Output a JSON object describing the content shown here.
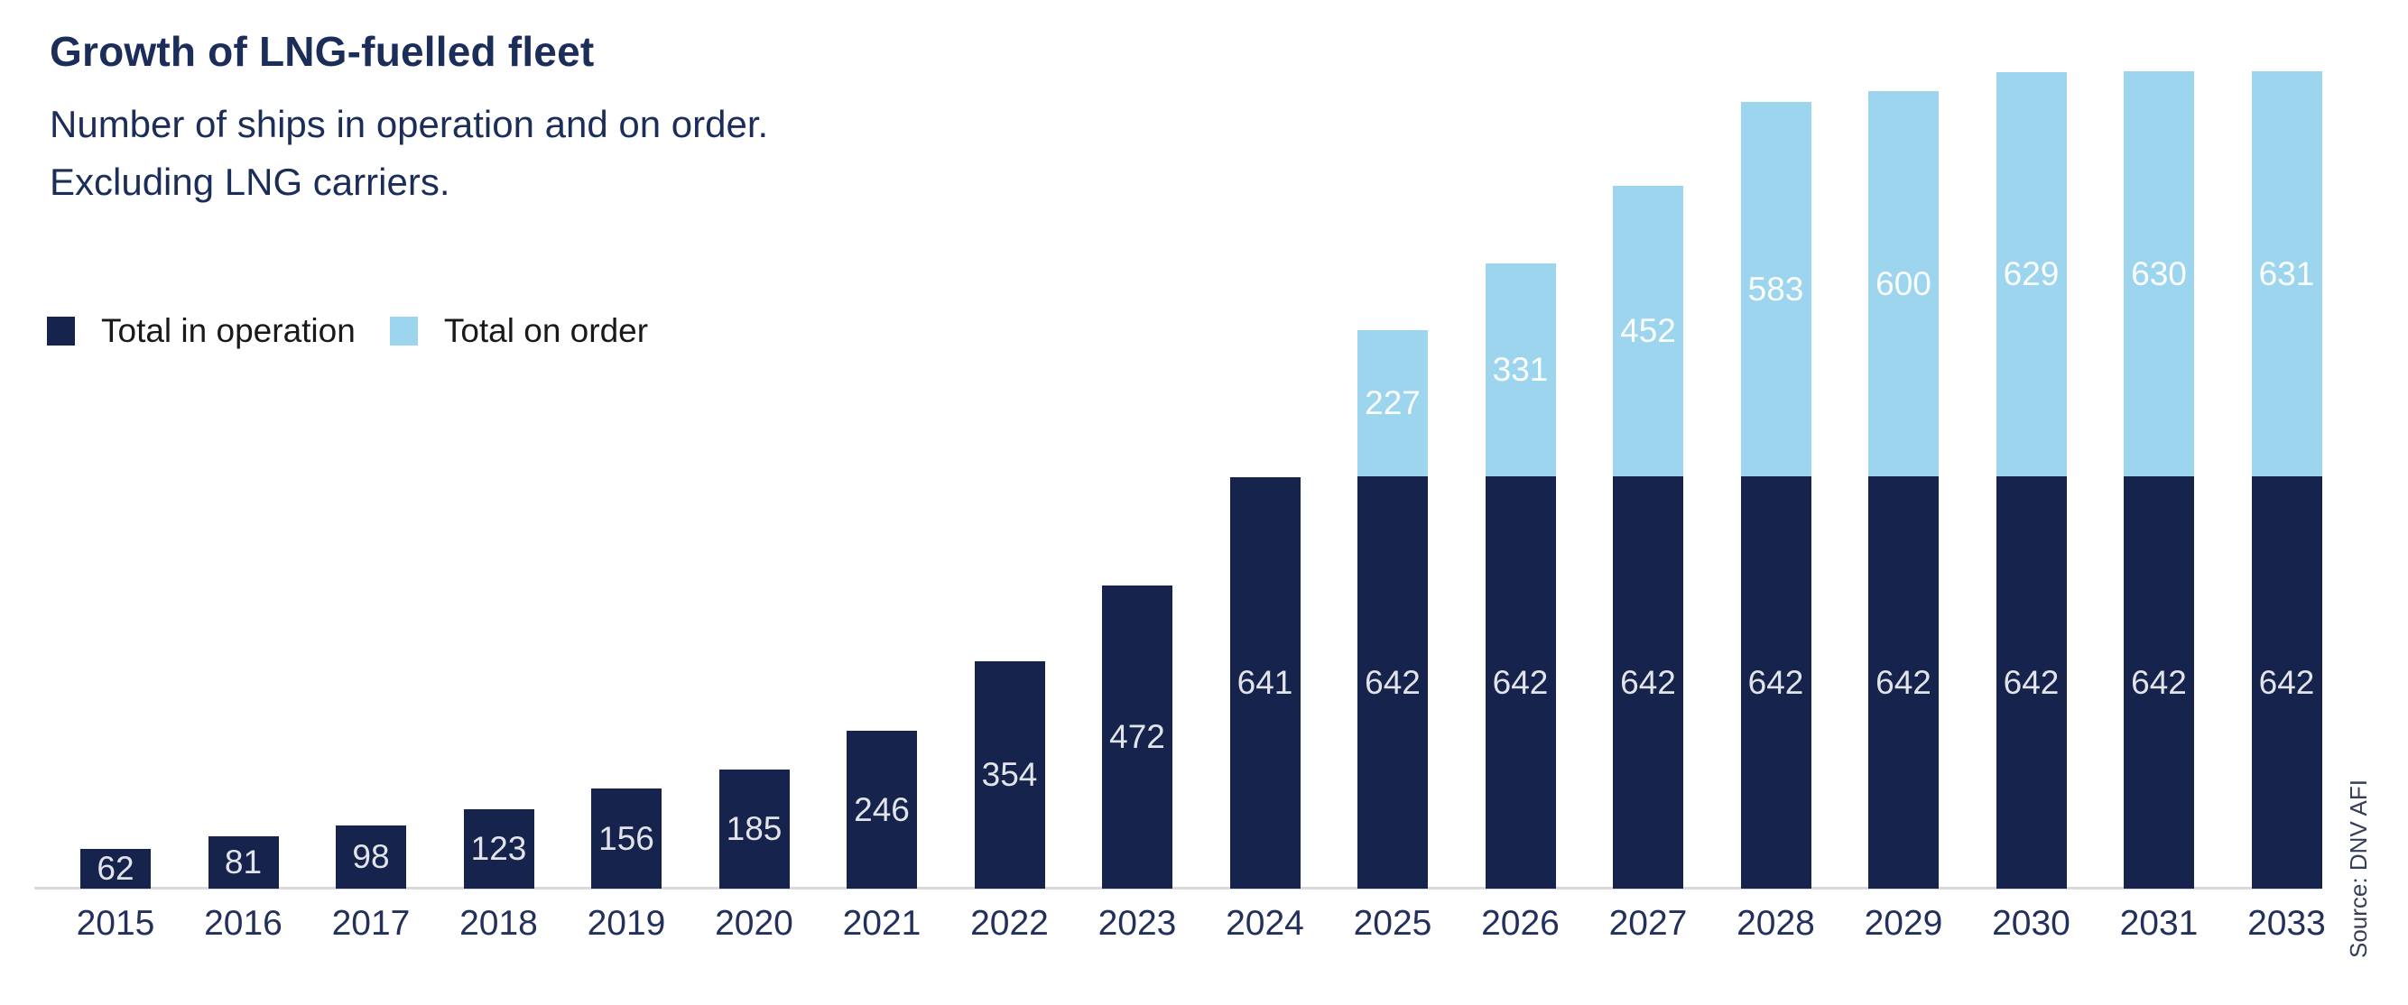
{
  "header": {
    "title": "Growth of LNG-fuelled fleet",
    "subtitle_line1": "Number of ships in operation and on order.",
    "subtitle_line2": "Excluding LNG carriers."
  },
  "legend": {
    "items": [
      {
        "label": "Total in operation",
        "color": "#16244d"
      },
      {
        "label": "Total on order",
        "color": "#9ed5ee"
      }
    ]
  },
  "source": "Source: DNV AFI",
  "colors": {
    "in_operation": "#16244d",
    "on_order": "#9ed5ee",
    "text_navy": "#1b2d59",
    "axis_line": "#d9d9d9"
  },
  "chart_data": {
    "type": "bar",
    "stacked": true,
    "title": "Growth of LNG-fuelled fleet",
    "subtitle": "Number of ships in operation and on order. Excluding LNG carriers.",
    "source": "Source: DNV AFI",
    "legend_position": "top-left",
    "grid": false,
    "y_axis_shown": false,
    "ylim": [
      0,
      1273
    ],
    "categories": [
      "2015",
      "2016",
      "2017",
      "2018",
      "2019",
      "2020",
      "2021",
      "2022",
      "2023",
      "2024",
      "2025",
      "2026",
      "2027",
      "2028",
      "2029",
      "2030",
      "2031",
      "2033"
    ],
    "series": [
      {
        "name": "Total in operation",
        "color": "#16244d",
        "values": [
          62,
          81,
          98,
          123,
          156,
          185,
          246,
          354,
          472,
          641,
          642,
          642,
          642,
          642,
          642,
          642,
          642,
          642
        ]
      },
      {
        "name": "Total on order",
        "color": "#9ed5ee",
        "values": [
          0,
          0,
          0,
          0,
          0,
          0,
          0,
          0,
          0,
          0,
          227,
          331,
          452,
          583,
          600,
          629,
          630,
          631
        ]
      }
    ],
    "data_labels_shown": true
  }
}
